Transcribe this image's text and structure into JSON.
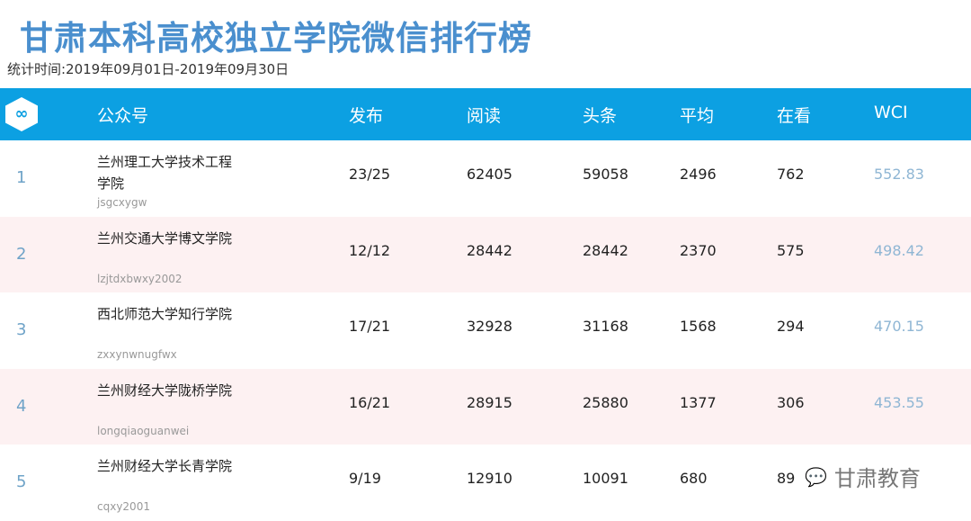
{
  "title": "甘肃本科高校独立学院微信排行榜",
  "subtitle": "统计时间:2019年09月01日-2019年09月30日",
  "header": {
    "logo": "∞",
    "columns": [
      "公众号",
      "发布",
      "阅读",
      "头条",
      "平均",
      "在看",
      "WCI"
    ]
  },
  "rows": [
    {
      "rank": "1",
      "name": "兰州理工大学技术工程学院",
      "id": "jsgcxygw",
      "publish": "23/25",
      "read": "62405",
      "top": "59058",
      "avg": "2496",
      "watching": "762",
      "wci": "552.83"
    },
    {
      "rank": "2",
      "name": "兰州交通大学博文学院",
      "id": "lzjtdxbwxy2002",
      "publish": "12/12",
      "read": "28442",
      "top": "28442",
      "avg": "2370",
      "watching": "575",
      "wci": "498.42"
    },
    {
      "rank": "3",
      "name": "西北师范大学知行学院",
      "id": "zxxynwnugfwx",
      "publish": "17/21",
      "read": "32928",
      "top": "31168",
      "avg": "1568",
      "watching": "294",
      "wci": "470.15"
    },
    {
      "rank": "4",
      "name": "兰州财经大学陇桥学院",
      "id": "longqiaoguanwei",
      "publish": "16/21",
      "read": "28915",
      "top": "25880",
      "avg": "1377",
      "watching": "306",
      "wci": "453.55"
    },
    {
      "rank": "5",
      "name": "兰州财经大学长青学院",
      "id": "cqxy2001",
      "publish": "9/19",
      "read": "12910",
      "top": "10091",
      "avg": "680",
      "watching": "89",
      "wci": ""
    }
  ],
  "watermark": {
    "icon": "wechat-icon",
    "text": "甘肃教育"
  },
  "colors": {
    "header": "#0ca0e2",
    "title": "#4a8fce",
    "alt_row": "#fdf1f2"
  }
}
